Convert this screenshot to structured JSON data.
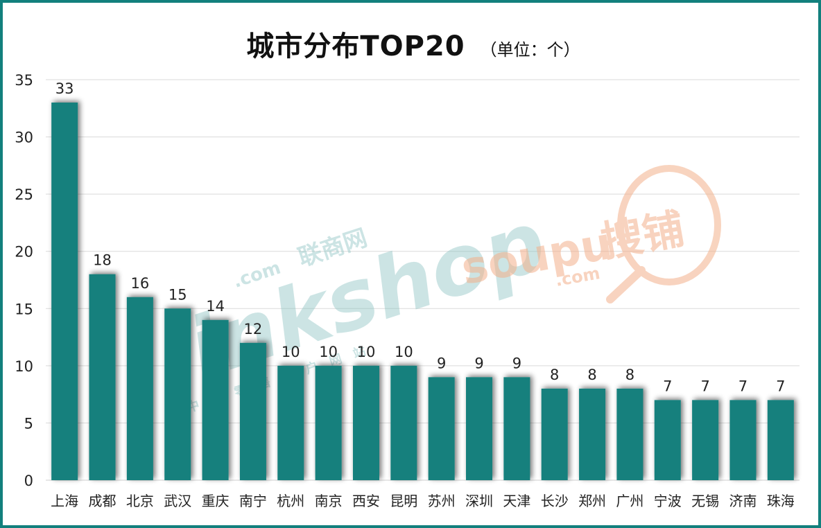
{
  "chart_data": {
    "type": "bar",
    "title": "城市分布TOP20",
    "subtitle": "（单位：个）",
    "categories": [
      "上海",
      "成都",
      "北京",
      "武汉",
      "重庆",
      "南宁",
      "杭州",
      "南京",
      "西安",
      "昆明",
      "苏州",
      "深圳",
      "天津",
      "长沙",
      "郑州",
      "广州",
      "宁波",
      "无锡",
      "济南",
      "珠海"
    ],
    "values": [
      33,
      18,
      16,
      15,
      14,
      12,
      10,
      10,
      10,
      10,
      9,
      9,
      9,
      8,
      8,
      8,
      7,
      7,
      7,
      7
    ],
    "y_ticks": [
      0,
      5,
      10,
      15,
      20,
      25,
      30,
      35
    ],
    "ylim": [
      0,
      35
    ],
    "grid": true,
    "data_labels": true,
    "bar_color": "#12807d",
    "border_color": "#12807d"
  },
  "watermarks": {
    "linkshop": {
      "brand": "linkshop",
      "com": ".com",
      "cn_name": "联商网",
      "slogan_chars": [
        "中",
        "国",
        "零",
        "售",
        "门",
        "户",
        "网",
        "站"
      ],
      "color": "#8fc5c4"
    },
    "soupu": {
      "brand": "soupu",
      "com": ".com",
      "cn_name": "搜铺",
      "color": "#f3b08b"
    }
  }
}
